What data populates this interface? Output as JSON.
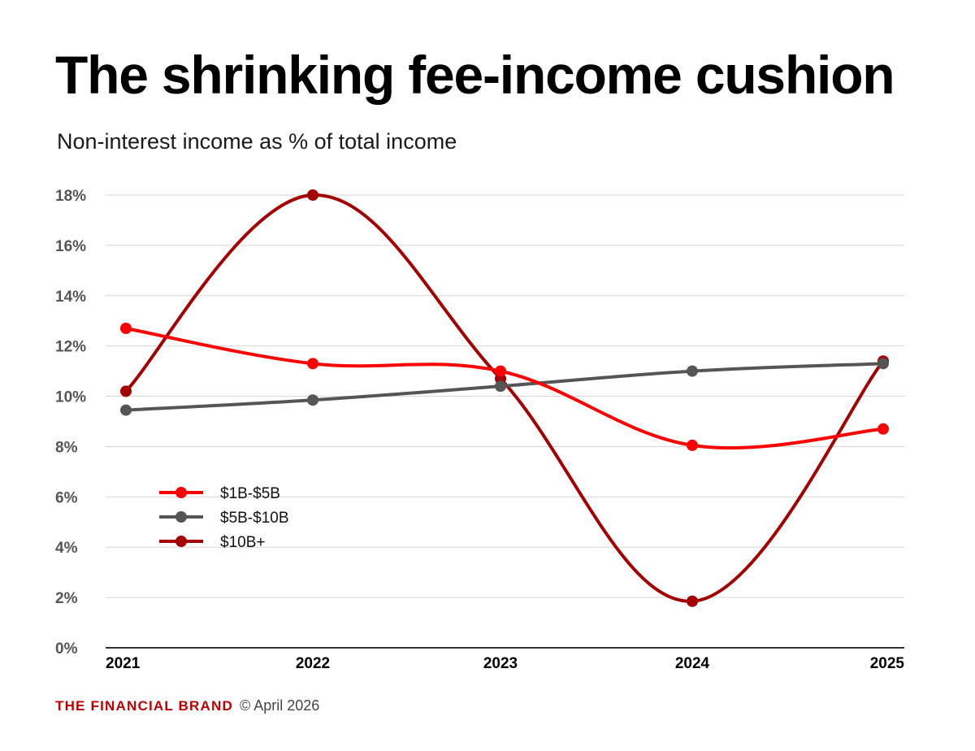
{
  "chart_data": {
    "type": "line",
    "title": "The shrinking fee-income cushion",
    "subtitle": "Non-interest income as % of total income",
    "x": [
      "2021",
      "2022",
      "2023",
      "2024",
      "2025"
    ],
    "ylim": [
      0,
      18
    ],
    "yticks": [
      0,
      2,
      4,
      6,
      8,
      10,
      12,
      14,
      16,
      18
    ],
    "ytick_suffix": "%",
    "grid": "horizontal",
    "legend_position": "lower-left",
    "series": [
      {
        "name": "$1B-$5B",
        "color": "#ff0000",
        "values": [
          12.7,
          11.3,
          11.0,
          8.05,
          8.7
        ]
      },
      {
        "name": "$5B-$10B",
        "color": "#555555",
        "values": [
          9.45,
          9.85,
          10.4,
          11.0,
          11.3
        ]
      },
      {
        "name": "$10B+",
        "color": "#a50000",
        "values": [
          10.2,
          18.0,
          10.7,
          1.85,
          11.4
        ]
      }
    ]
  },
  "footer": {
    "brand": "THE FINANCIAL BRAND",
    "credit": "© April 2026"
  }
}
